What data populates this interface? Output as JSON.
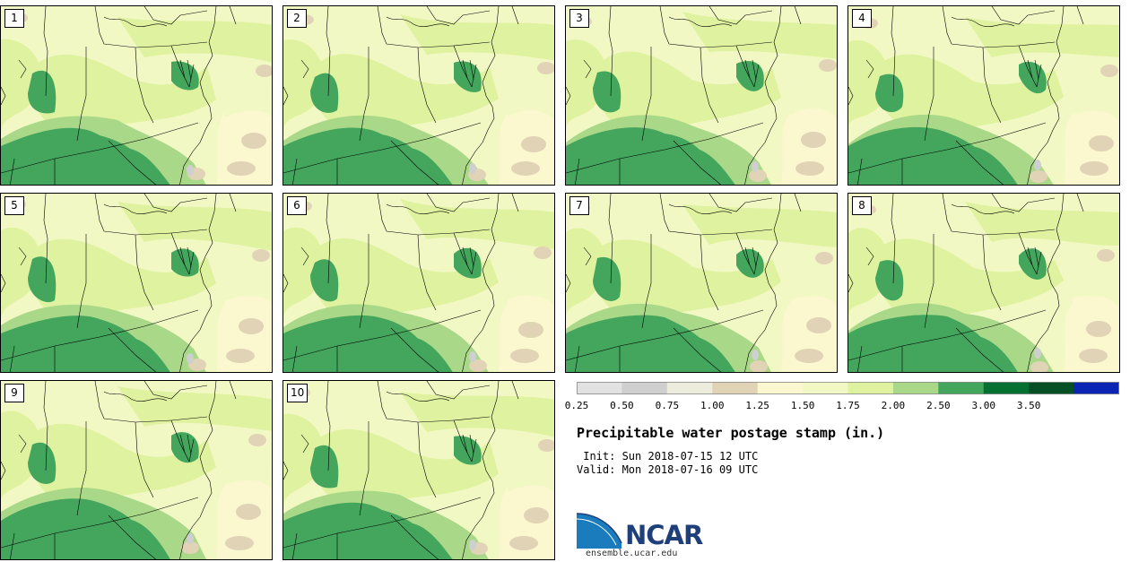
{
  "panels": [
    {
      "label": "1"
    },
    {
      "label": "2"
    },
    {
      "label": "3"
    },
    {
      "label": "4"
    },
    {
      "label": "5"
    },
    {
      "label": "6"
    },
    {
      "label": "7"
    },
    {
      "label": "8"
    },
    {
      "label": "9"
    },
    {
      "label": "10"
    }
  ],
  "colorbar": {
    "tick_labels": [
      "0.25",
      "0.50",
      "0.75",
      "1.00",
      "1.25",
      "1.50",
      "1.75",
      "2.00",
      "2.50",
      "3.00",
      "3.50"
    ],
    "colors": [
      "#e2e2e2",
      "#cfcfcf",
      "#ededde",
      "#e1d3b6",
      "#fbf7cf",
      "#f2f8c4",
      "#dff29f",
      "#a9d889",
      "#43a65c",
      "#047133",
      "#054f24",
      "#0a25b4"
    ]
  },
  "title": "Precipitable water postage stamp (in.)",
  "init": " Init: Sun 2018-07-15 12 UTC",
  "valid": "Valid: Mon 2018-07-16 09 UTC",
  "logo": {
    "text": "NCAR",
    "url": "ensemble.ucar.edu"
  },
  "colors": {
    "land_base": "#f2f8c4",
    "light_green": "#dff29f",
    "mid_green": "#a9d889",
    "green": "#43a65c",
    "tan": "#e1d3b6",
    "cream": "#fbf7cf",
    "gray": "#cfcfcf",
    "logo_blue": "#1f3f7a"
  }
}
